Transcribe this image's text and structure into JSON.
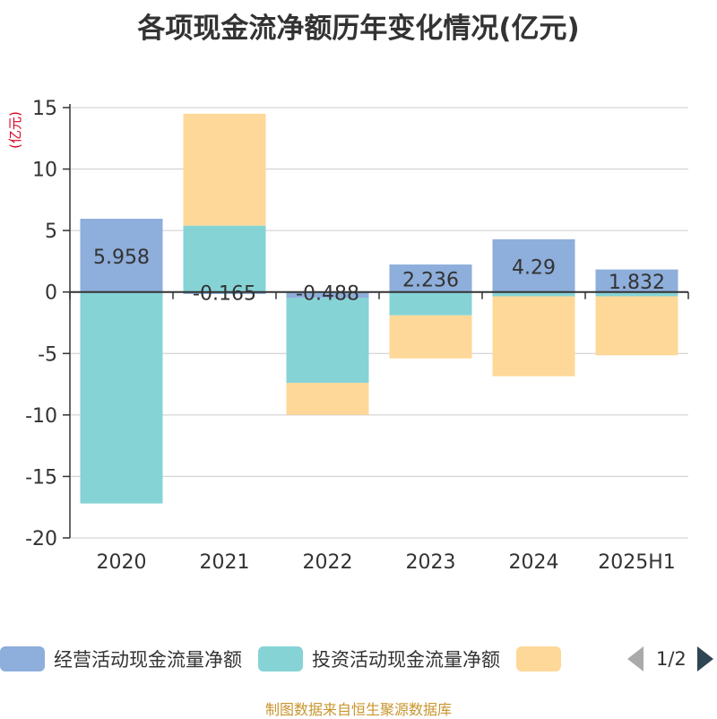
{
  "title": "各项现金流净额历年变化情况(亿元)",
  "source": "制图数据来自恒生聚源数据库",
  "colors": {
    "operating": "#8eaedb",
    "investing": "#86d3d6",
    "financing": "#fed898",
    "yunit": "#d9001b"
  },
  "legend": {
    "items": [
      "经营活动现金流量净额",
      "投资活动现金流量净额",
      ""
    ],
    "pager": "1/2"
  },
  "chart_data": {
    "type": "bar",
    "stacked": true,
    "categories": [
      "2020",
      "2021",
      "2022",
      "2023",
      "2024",
      "2025H1"
    ],
    "yunit": "(亿元)",
    "ylim": [
      -20,
      15
    ],
    "yticks": [
      15,
      10,
      5,
      0,
      -5,
      -10,
      -15,
      -20
    ],
    "grid": true,
    "series": [
      {
        "name": "经营活动现金流量净额",
        "values": [
          5.958,
          -0.165,
          -0.488,
          2.236,
          4.29,
          1.832
        ]
      },
      {
        "name": "投资活动现金流量净额",
        "values": [
          -17.2,
          5.4,
          -6.9,
          -1.9,
          -0.35,
          -0.35
        ]
      },
      {
        "values": [
          0.0,
          9.1,
          -2.6,
          -3.5,
          -6.5,
          -4.8
        ]
      }
    ],
    "data_labels": [
      "5.958",
      "-0.165",
      "-0.488",
      "2.236",
      "4.29",
      "1.832"
    ]
  }
}
